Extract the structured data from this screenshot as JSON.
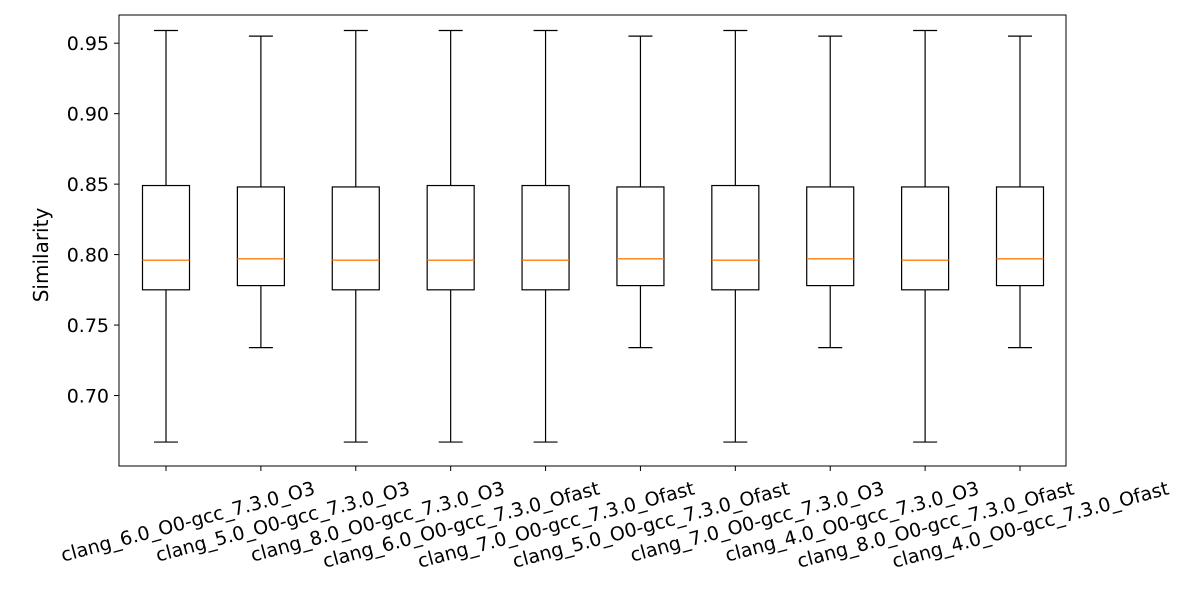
{
  "chart_data": {
    "type": "boxplot",
    "title": "",
    "xlabel": "",
    "ylabel": "Similarity",
    "ylim": [
      0.65,
      0.97
    ],
    "yticks": [
      0.7,
      0.75,
      0.8,
      0.85,
      0.9,
      0.95
    ],
    "ytick_labels": [
      "0.70",
      "0.75",
      "0.80",
      "0.85",
      "0.90",
      "0.95"
    ],
    "grid": false,
    "box_color": "#000000",
    "median_color": "#ff7f0e",
    "categories": [
      "clang_6.0_O0-gcc_7.3.0_O3",
      "clang_5.0_O0-gcc_7.3.0_O3",
      "clang_8.0_O0-gcc_7.3.0_O3",
      "clang_6.0_O0-gcc_7.3.0_Ofast",
      "clang_7.0_O0-gcc_7.3.0_Ofast",
      "clang_5.0_O0-gcc_7.3.0_Ofast",
      "clang_7.0_O0-gcc_7.3.0_O3",
      "clang_4.0_O0-gcc_7.3.0_O3",
      "clang_8.0_O0-gcc_7.3.0_Ofast",
      "clang_4.0_O0-gcc_7.3.0_Ofast"
    ],
    "boxes": [
      {
        "whisker_low": 0.667,
        "q1": 0.775,
        "median": 0.796,
        "q3": 0.849,
        "whisker_high": 0.959
      },
      {
        "whisker_low": 0.734,
        "q1": 0.778,
        "median": 0.797,
        "q3": 0.848,
        "whisker_high": 0.955
      },
      {
        "whisker_low": 0.667,
        "q1": 0.775,
        "median": 0.796,
        "q3": 0.848,
        "whisker_high": 0.959
      },
      {
        "whisker_low": 0.667,
        "q1": 0.775,
        "median": 0.796,
        "q3": 0.849,
        "whisker_high": 0.959
      },
      {
        "whisker_low": 0.667,
        "q1": 0.775,
        "median": 0.796,
        "q3": 0.849,
        "whisker_high": 0.959
      },
      {
        "whisker_low": 0.734,
        "q1": 0.778,
        "median": 0.797,
        "q3": 0.848,
        "whisker_high": 0.955
      },
      {
        "whisker_low": 0.667,
        "q1": 0.775,
        "median": 0.796,
        "q3": 0.849,
        "whisker_high": 0.959
      },
      {
        "whisker_low": 0.734,
        "q1": 0.778,
        "median": 0.797,
        "q3": 0.848,
        "whisker_high": 0.955
      },
      {
        "whisker_low": 0.667,
        "q1": 0.775,
        "median": 0.796,
        "q3": 0.848,
        "whisker_high": 0.959
      },
      {
        "whisker_low": 0.734,
        "q1": 0.778,
        "median": 0.797,
        "q3": 0.848,
        "whisker_high": 0.955
      }
    ]
  }
}
